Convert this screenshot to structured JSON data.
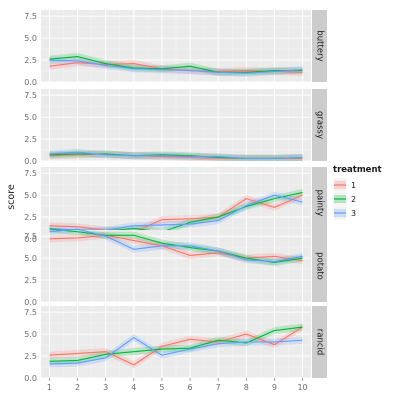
{
  "chart_data": {
    "type": "line",
    "facet_type": "faceted-line-with-ribbon",
    "xlabel": "",
    "ylabel": "score",
    "x": [
      1,
      2,
      3,
      4,
      5,
      6,
      7,
      8,
      9,
      10
    ],
    "xticks": [
      "1",
      "2",
      "3",
      "4",
      "5",
      "6",
      "7",
      "8",
      "9",
      "10"
    ],
    "yticks": [
      "0.0",
      "2.5",
      "5.0",
      "7.5"
    ],
    "ylim": [
      0,
      8.2
    ],
    "xlim": [
      0.7,
      10.3
    ],
    "grid": true,
    "legend": {
      "title": "treatment",
      "placement": "right",
      "entries": [
        {
          "label": "1",
          "color": "#F8766D"
        },
        {
          "label": "2",
          "color": "#00BA38"
        },
        {
          "label": "3",
          "color": "#619CFF"
        }
      ]
    },
    "ribbon_halfwidth": 0.4,
    "panels": [
      {
        "strip": "buttery",
        "series": [
          {
            "treatment": "1",
            "values": [
              1.8,
              2.2,
              2.0,
              2.1,
              1.5,
              1.3,
              1.2,
              1.3,
              1.2,
              1.1
            ]
          },
          {
            "treatment": "2",
            "values": [
              2.6,
              2.9,
              2.1,
              1.6,
              1.5,
              1.8,
              1.1,
              1.1,
              1.3,
              1.3
            ]
          },
          {
            "treatment": "3",
            "values": [
              2.5,
              2.4,
              1.9,
              1.5,
              1.4,
              1.3,
              1.1,
              1.0,
              1.2,
              1.4
            ]
          }
        ]
      },
      {
        "strip": "grassy",
        "series": [
          {
            "treatment": "1",
            "values": [
              0.6,
              0.7,
              0.8,
              0.6,
              0.5,
              0.4,
              0.3,
              0.3,
              0.3,
              0.3
            ]
          },
          {
            "treatment": "2",
            "values": [
              0.7,
              0.8,
              0.8,
              0.6,
              0.7,
              0.6,
              0.4,
              0.3,
              0.3,
              0.4
            ]
          },
          {
            "treatment": "3",
            "values": [
              0.8,
              1.0,
              0.7,
              0.6,
              0.6,
              0.5,
              0.5,
              0.3,
              0.3,
              0.4
            ]
          }
        ]
      },
      {
        "strip": "painty",
        "series": [
          {
            "treatment": "1",
            "values": [
              1.5,
              1.4,
              1.0,
              0.8,
              2.2,
              2.3,
              2.5,
              4.6,
              3.6,
              5.0
            ]
          },
          {
            "treatment": "2",
            "values": [
              0.8,
              0.7,
              0.9,
              1.2,
              0.8,
              1.9,
              2.5,
              3.7,
              4.6,
              5.3
            ]
          },
          {
            "treatment": "3",
            "values": [
              1.2,
              1.0,
              1.0,
              1.5,
              1.6,
              1.7,
              2.1,
              3.8,
              5.0,
              4.2
            ]
          }
        ]
      },
      {
        "strip": "potato",
        "series": [
          {
            "treatment": "1",
            "values": [
              7.2,
              7.3,
              7.6,
              7.0,
              6.4,
              5.3,
              5.6,
              5.0,
              5.2,
              4.7
            ]
          },
          {
            "treatment": "2",
            "values": [
              8.3,
              8.0,
              7.6,
              7.6,
              6.7,
              6.2,
              5.8,
              5.0,
              4.5,
              5.0
            ]
          },
          {
            "treatment": "3",
            "values": [
              8.0,
              8.3,
              7.5,
              6.0,
              6.4,
              6.4,
              5.8,
              4.8,
              4.6,
              5.2
            ]
          }
        ]
      },
      {
        "strip": "rancid",
        "series": [
          {
            "treatment": "1",
            "values": [
              2.6,
              2.8,
              3.0,
              1.5,
              3.6,
              4.4,
              4.1,
              5.0,
              3.8,
              5.8
            ]
          },
          {
            "treatment": "2",
            "values": [
              1.9,
              2.0,
              2.7,
              3.0,
              3.3,
              3.4,
              4.3,
              4.0,
              5.4,
              5.8
            ]
          },
          {
            "treatment": "3",
            "values": [
              1.6,
              1.7,
              2.3,
              4.6,
              2.6,
              3.3,
              3.9,
              4.1,
              4.1,
              4.3
            ]
          }
        ]
      }
    ]
  }
}
